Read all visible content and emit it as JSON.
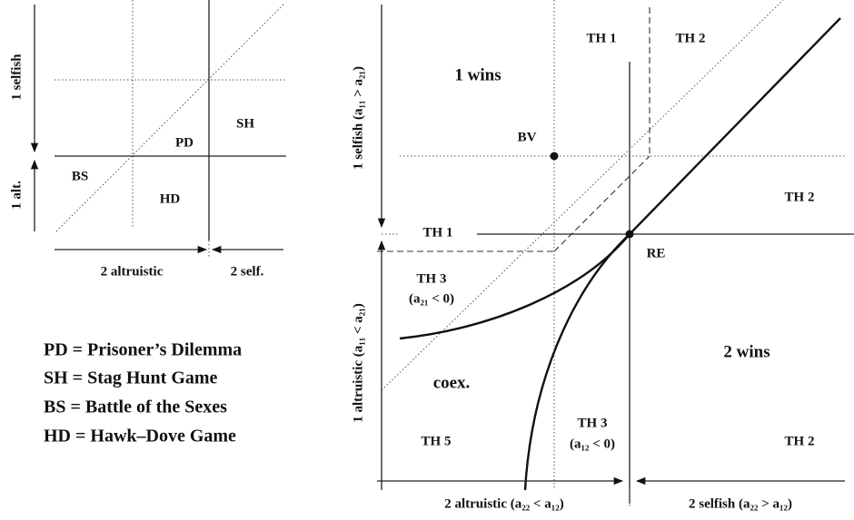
{
  "left_panel": {
    "regions": [
      "PD",
      "SH",
      "BS",
      "HD"
    ],
    "axis_y": [
      "1 selfish",
      "1 alt."
    ],
    "axis_x": [
      "2 altruistic",
      "2 self."
    ]
  },
  "legend": [
    "PD = Prisoner’s Dilemma",
    "SH = Stag Hunt Game",
    "BS = Battle of the Sexes",
    "HD = Hawk–Dove Game"
  ],
  "right_panel": {
    "regions": [
      "TH 1",
      "TH 2",
      "1 wins",
      "BV",
      "TH 2",
      "TH 1",
      "RE",
      "TH 3",
      "(a₂₁ < 0)",
      "2 wins",
      "coex.",
      "TH 3",
      "(a₁₂ < 0)",
      "TH 5",
      "TH 2"
    ],
    "axis_y": [
      "1 selfish (a₁₁ > a₂₁)",
      "1 altruistic (a₁₁ < a₂₁)"
    ],
    "axis_x": [
      "2 altruistic (a₂₂ < a₁₂)",
      "2 selfish (a₂₂ > a₁₂)"
    ]
  }
}
